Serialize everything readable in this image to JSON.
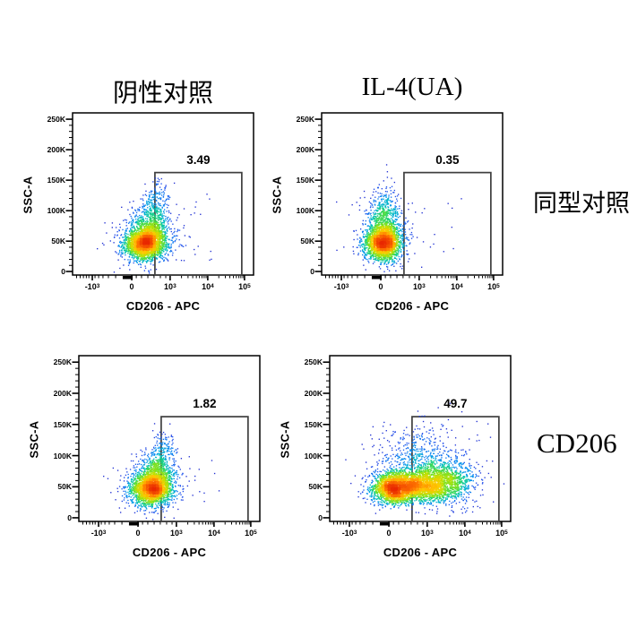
{
  "figure": {
    "background": "#ffffff",
    "column_titles": [
      "阴性对照",
      "IL-4(UA)"
    ],
    "row_labels": [
      "同型对照",
      "CD206"
    ]
  },
  "axes": {
    "x_title": "CD206 - APC",
    "y_title": "SSC-A",
    "y_tick_labels": [
      "250K",
      "200K",
      "150K",
      "100K",
      "50K",
      "0"
    ],
    "x_tick_labels": [
      {
        "base": "-10",
        "exp": "3"
      },
      {
        "base": "0",
        "exp": ""
      },
      {
        "base": "10",
        "exp": "3"
      },
      {
        "base": "10",
        "exp": "4"
      },
      {
        "base": "10",
        "exp": "5"
      }
    ]
  },
  "style": {
    "axis_color": "#000000",
    "gate_color": "#3f3f3f",
    "density_palette": [
      "#2222c8",
      "#2255ee",
      "#0090f0",
      "#00c0c0",
      "#20d470",
      "#70e028",
      "#c0e000",
      "#ffc800",
      "#ff7800",
      "#e82800"
    ],
    "palette_stops": [
      0.0,
      0.15,
      0.3,
      0.42,
      0.52,
      0.62,
      0.72,
      0.82,
      0.9,
      1.0
    ]
  },
  "chart_data": [
    {
      "type": "scatter",
      "panel": "top-left",
      "column": "阴性对照",
      "row": "同型对照",
      "xlabel": "CD206 - APC",
      "ylabel": "SSC-A",
      "x_ticks": [
        "-10^3",
        "0",
        "10^3",
        "10^4",
        "10^5"
      ],
      "y_ticks": [
        "0",
        "50K",
        "100K",
        "150K",
        "200K",
        "250K"
      ],
      "gate": {
        "label": "3.49",
        "x0": 0.455,
        "x1": 0.935,
        "y_top": 0.368
      },
      "seed": 11,
      "clusters": [
        {
          "cx": 0.4,
          "cy": 0.195,
          "sx": 0.055,
          "sy": 0.048,
          "n": 2300
        },
        {
          "cx": 0.435,
          "cy": 0.3,
          "sx": 0.05,
          "sy": 0.065,
          "n": 650
        },
        {
          "cx": 0.465,
          "cy": 0.455,
          "sx": 0.038,
          "sy": 0.065,
          "n": 160
        },
        {
          "cx": 0.41,
          "cy": 0.23,
          "sx": 0.1,
          "sy": 0.1,
          "n": 260
        }
      ],
      "outliers": {
        "n": 16,
        "x0": 0.5,
        "x1": 0.78,
        "y0": 0.08,
        "y1": 0.5
      }
    },
    {
      "type": "scatter",
      "panel": "top-right",
      "column": "IL-4(UA)",
      "row": "同型对照",
      "xlabel": "CD206 - APC",
      "ylabel": "SSC-A",
      "x_ticks": [
        "-10^3",
        "0",
        "10^3",
        "10^4",
        "10^5"
      ],
      "y_ticks": [
        "0",
        "50K",
        "100K",
        "150K",
        "200K",
        "250K"
      ],
      "gate": {
        "label": "0.35",
        "x0": 0.455,
        "x1": 0.935,
        "y_top": 0.368
      },
      "seed": 22,
      "clusters": [
        {
          "cx": 0.34,
          "cy": 0.2,
          "sx": 0.048,
          "sy": 0.052,
          "n": 2300
        },
        {
          "cx": 0.345,
          "cy": 0.345,
          "sx": 0.042,
          "sy": 0.09,
          "n": 600
        },
        {
          "cx": 0.34,
          "cy": 0.24,
          "sx": 0.085,
          "sy": 0.11,
          "n": 240
        }
      ],
      "outliers": {
        "n": 14,
        "x0": 0.46,
        "x1": 0.78,
        "y0": 0.1,
        "y1": 0.55
      }
    },
    {
      "type": "scatter",
      "panel": "bottom-left",
      "column": "阴性对照",
      "row": "CD206",
      "xlabel": "CD206 - APC",
      "ylabel": "SSC-A",
      "x_ticks": [
        "-10^3",
        "0",
        "10^3",
        "10^4",
        "10^5"
      ],
      "y_ticks": [
        "0",
        "50K",
        "100K",
        "150K",
        "200K",
        "250K"
      ],
      "gate": {
        "label": "1.82",
        "x0": 0.455,
        "x1": 0.935,
        "y_top": 0.368
      },
      "seed": 33,
      "clusters": [
        {
          "cx": 0.4,
          "cy": 0.195,
          "sx": 0.055,
          "sy": 0.048,
          "n": 2200
        },
        {
          "cx": 0.435,
          "cy": 0.3,
          "sx": 0.05,
          "sy": 0.062,
          "n": 600
        },
        {
          "cx": 0.465,
          "cy": 0.44,
          "sx": 0.036,
          "sy": 0.06,
          "n": 130
        },
        {
          "cx": 0.41,
          "cy": 0.23,
          "sx": 0.1,
          "sy": 0.095,
          "n": 240
        }
      ],
      "outliers": {
        "n": 10,
        "x0": 0.5,
        "x1": 0.8,
        "y0": 0.1,
        "y1": 0.4
      }
    },
    {
      "type": "scatter",
      "panel": "bottom-right",
      "column": "IL-4(UA)",
      "row": "CD206",
      "xlabel": "CD206 - APC",
      "ylabel": "SSC-A",
      "x_ticks": [
        "-10^3",
        "0",
        "10^3",
        "10^4",
        "10^5"
      ],
      "y_ticks": [
        "0",
        "50K",
        "100K",
        "150K",
        "200K",
        "250K"
      ],
      "gate": {
        "label": "49.7",
        "x0": 0.455,
        "x1": 0.935,
        "y_top": 0.368
      },
      "seed": 44,
      "clusters": [
        {
          "cx": 0.35,
          "cy": 0.195,
          "sx": 0.06,
          "sy": 0.045,
          "n": 1700
        },
        {
          "cx": 0.5,
          "cy": 0.215,
          "sx": 0.105,
          "sy": 0.05,
          "n": 2100
        },
        {
          "cx": 0.63,
          "cy": 0.245,
          "sx": 0.09,
          "sy": 0.065,
          "n": 850
        },
        {
          "cx": 0.5,
          "cy": 0.36,
          "sx": 0.14,
          "sy": 0.11,
          "n": 650
        }
      ],
      "outliers": {
        "n": 24,
        "x0": 0.3,
        "x1": 0.92,
        "y0": 0.08,
        "y1": 0.62
      }
    }
  ]
}
